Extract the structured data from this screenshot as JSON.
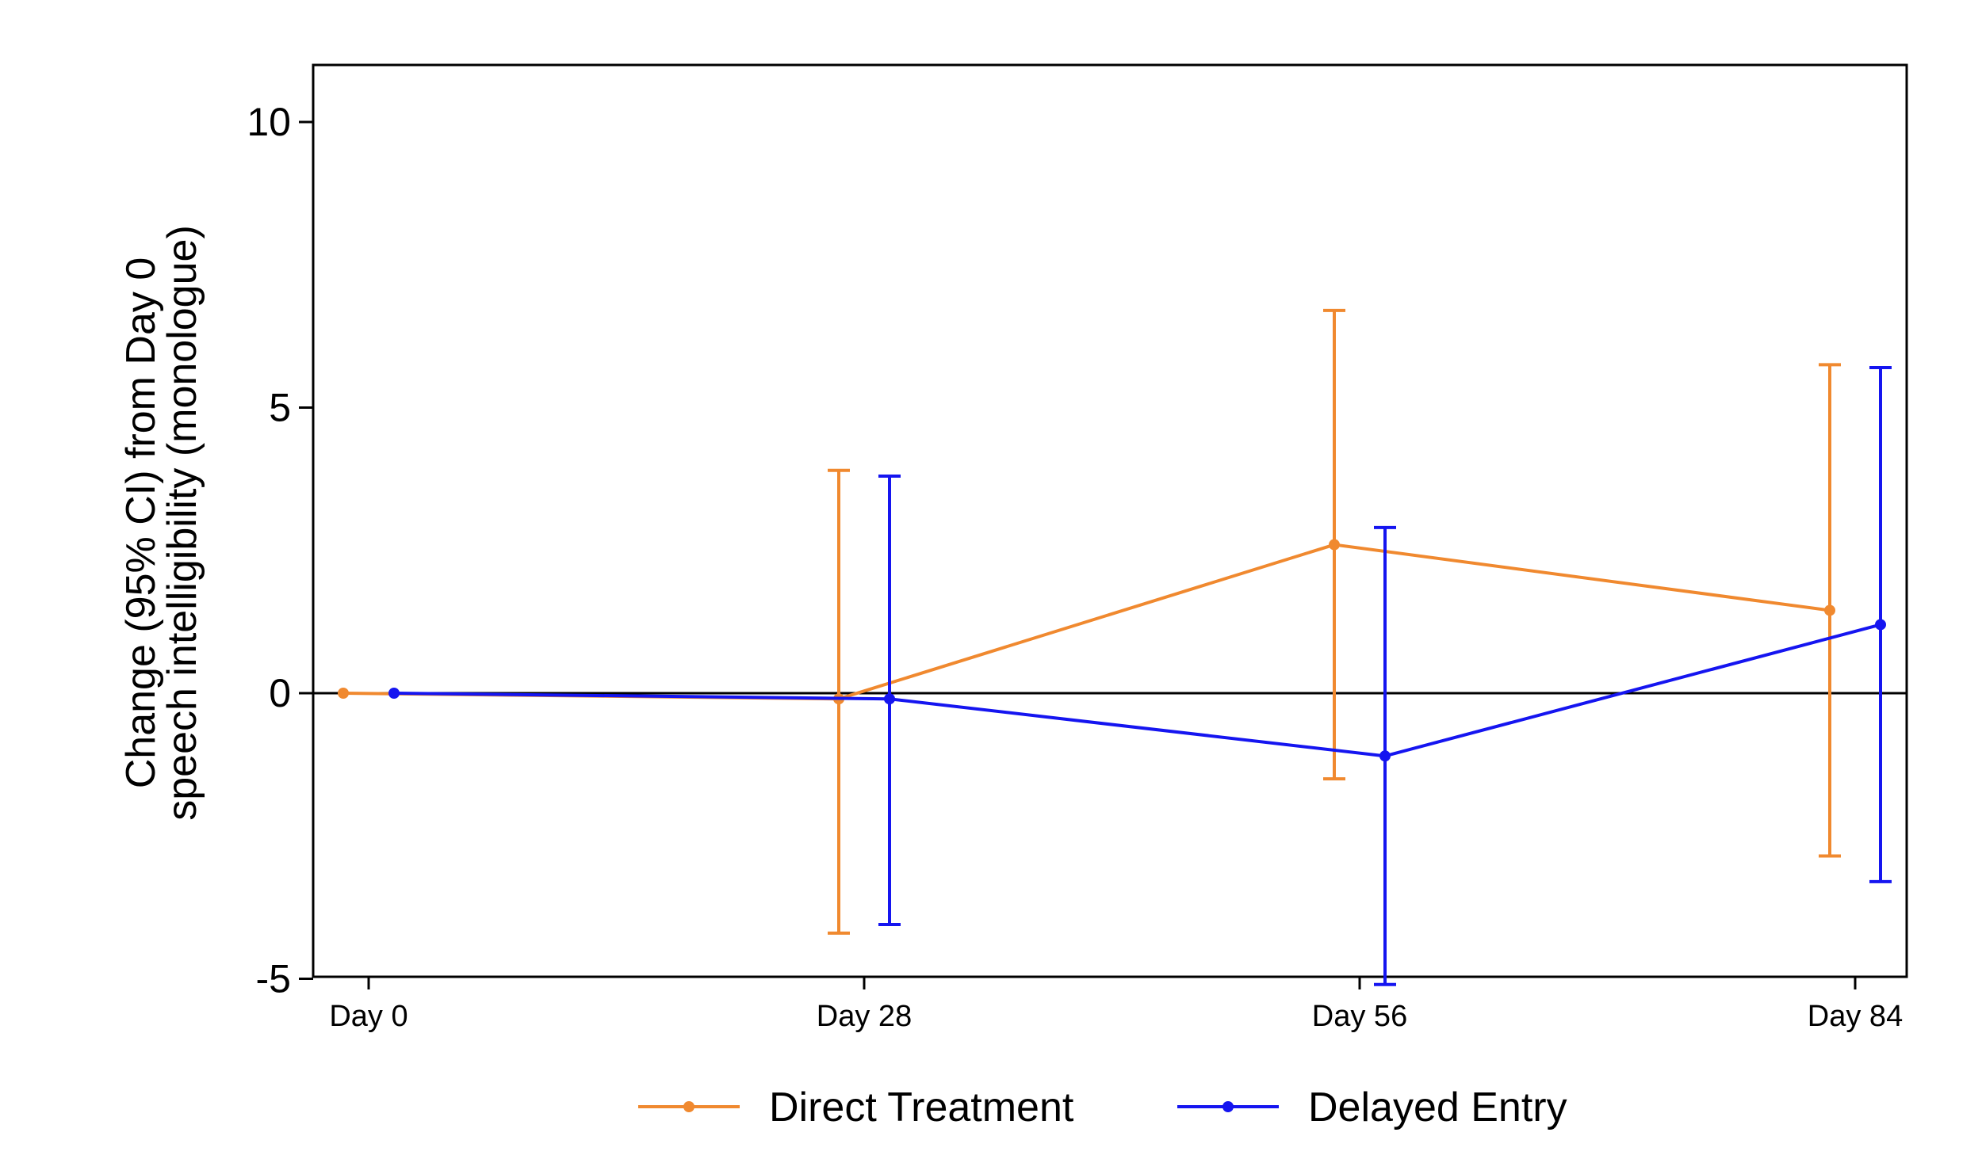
{
  "chart_data": {
    "type": "line",
    "ylabel_lines": [
      "Change (95% CI) from Day 0",
      "speech intelligibility (monologue)"
    ],
    "xlabel": "",
    "categories": [
      "Day 0",
      "Day 28",
      "Day 56",
      "Day 84"
    ],
    "y_ticks": [
      -5,
      0,
      5,
      10
    ],
    "ylim": [
      -5.5,
      10.5
    ],
    "reference_line": 0,
    "grid": false,
    "legend_position": "bottom",
    "series": [
      {
        "name": "Direct Treatment",
        "color": "#f0892f",
        "points": [
          {
            "x": "Day 0",
            "y": 0.0,
            "ci_low": null,
            "ci_high": null
          },
          {
            "x": "Day 28",
            "y": -0.1,
            "ci_low": -4.2,
            "ci_high": 3.9
          },
          {
            "x": "Day 56",
            "y": 2.6,
            "ci_low": -1.5,
            "ci_high": 6.7
          },
          {
            "x": "Day 84",
            "y": 1.45,
            "ci_low": -2.85,
            "ci_high": 5.75
          }
        ]
      },
      {
        "name": "Delayed Entry",
        "color": "#1515f0",
        "points": [
          {
            "x": "Day 0",
            "y": 0.0,
            "ci_low": null,
            "ci_high": null
          },
          {
            "x": "Day 28",
            "y": -0.1,
            "ci_low": -4.05,
            "ci_high": 3.8
          },
          {
            "x": "Day 56",
            "y": -1.1,
            "ci_low": -5.1,
            "ci_high": 2.9
          },
          {
            "x": "Day 84",
            "y": 1.2,
            "ci_low": -3.3,
            "ci_high": 5.7
          }
        ]
      }
    ]
  }
}
